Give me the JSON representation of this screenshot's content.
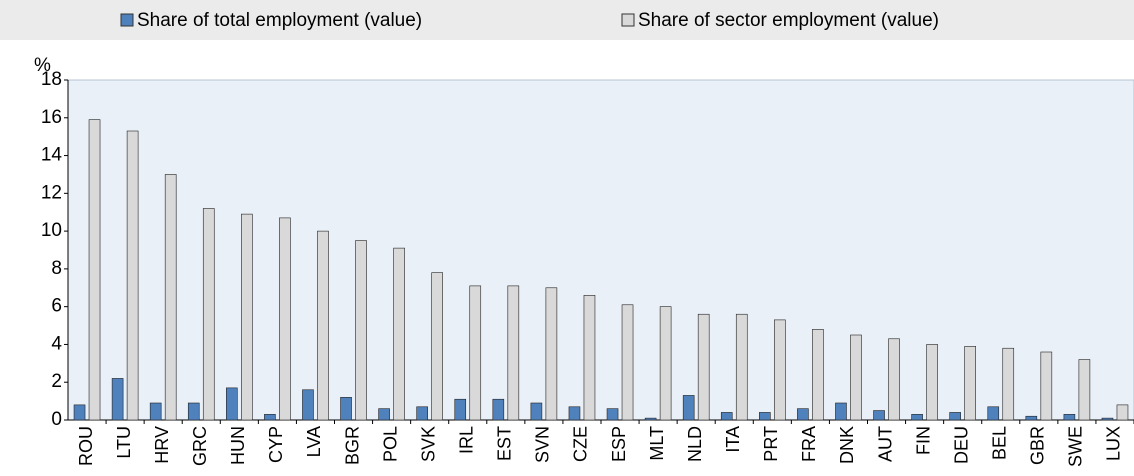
{
  "chart_data": {
    "type": "bar",
    "y_unit": "%",
    "categories": [
      "ROU",
      "LTU",
      "HRV",
      "GRC",
      "HUN",
      "CYP",
      "LVA",
      "BGR",
      "POL",
      "SVK",
      "IRL",
      "EST",
      "SVN",
      "CZE",
      "ESP",
      "MLT",
      "NLD",
      "ITA",
      "PRT",
      "FRA",
      "DNK",
      "AUT",
      "FIN",
      "DEU",
      "BEL",
      "GBR",
      "SWE",
      "LUX"
    ],
    "series": [
      {
        "name": "Share of total employment (value)",
        "color": "#4f81bd",
        "values": [
          0.8,
          2.2,
          0.9,
          0.9,
          1.7,
          0.3,
          1.6,
          1.2,
          0.6,
          0.7,
          1.1,
          1.1,
          0.9,
          0.7,
          0.6,
          0.1,
          1.3,
          0.4,
          0.4,
          0.6,
          0.9,
          0.5,
          0.3,
          0.4,
          0.7,
          0.2,
          0.3,
          0.1
        ]
      },
      {
        "name": "Share of sector employment (value)",
        "color": "#d9d9d9",
        "values": [
          15.9,
          15.3,
          13.0,
          11.2,
          10.9,
          10.7,
          10.0,
          9.5,
          9.1,
          7.8,
          7.1,
          7.1,
          7.0,
          6.6,
          6.1,
          6.0,
          5.6,
          5.6,
          5.3,
          4.8,
          4.5,
          4.3,
          4.0,
          3.9,
          3.8,
          3.6,
          3.2,
          0.8
        ]
      }
    ],
    "ylim": [
      0,
      18
    ],
    "yticks": [
      0,
      2,
      4,
      6,
      8,
      10,
      12,
      14,
      16,
      18
    ],
    "legend": "top"
  }
}
